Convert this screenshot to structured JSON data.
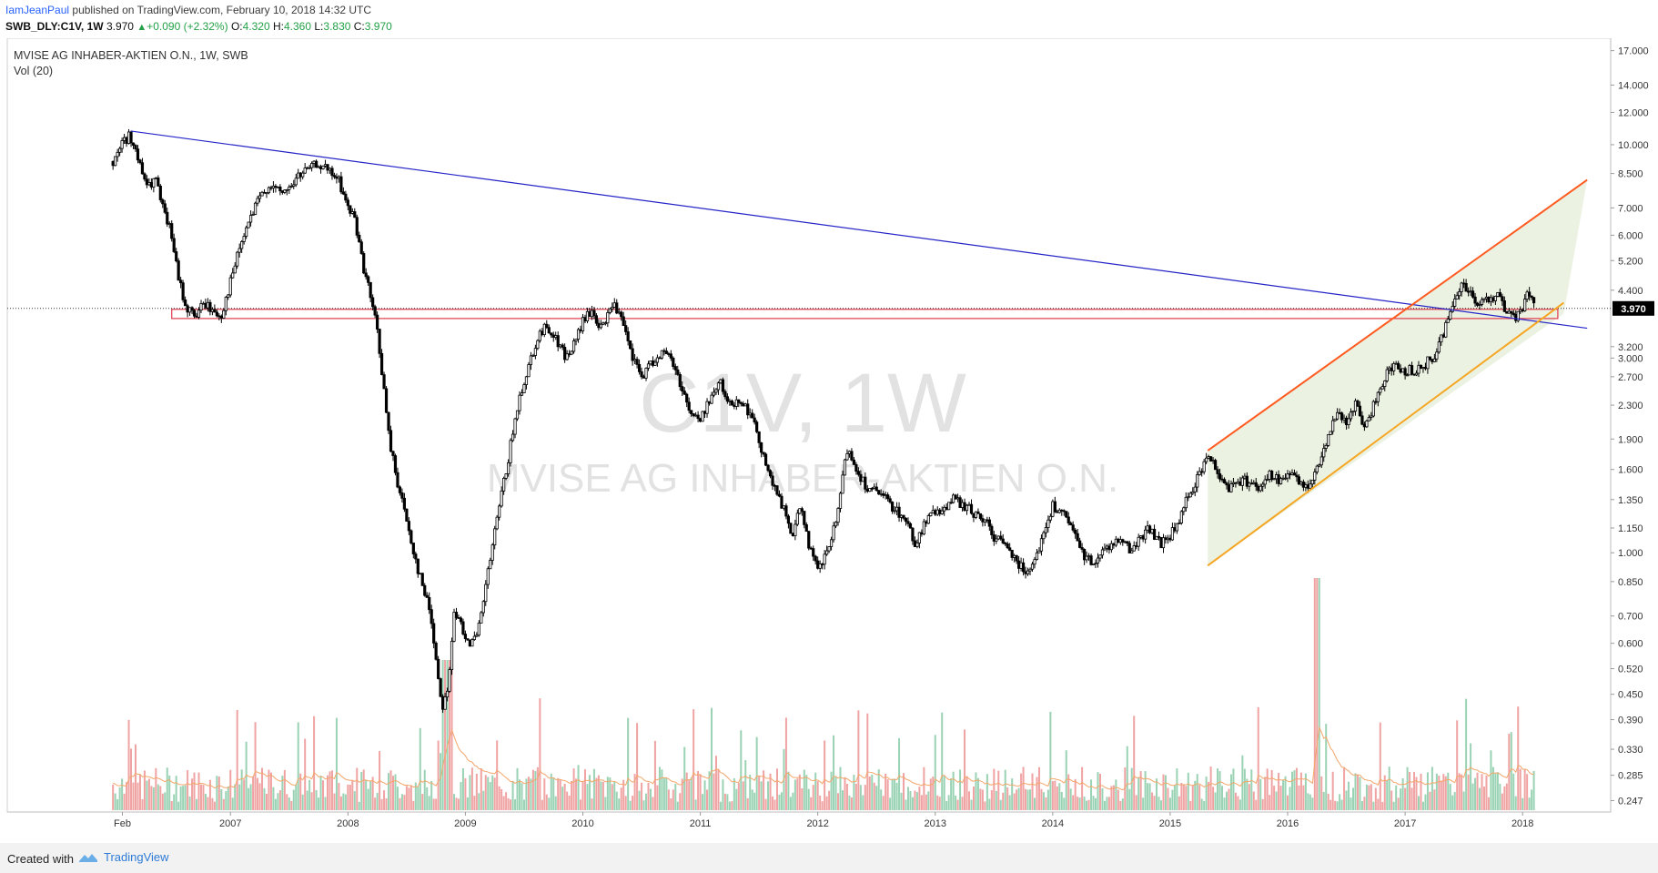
{
  "header": {
    "author": "IamJeanPaul",
    "published_text": "published on TradingView.com, February 10, 2018 14:32 UTC",
    "symbol": "SWB_DLY:C1V, 1W",
    "last": "3.970",
    "change": "+0.090 (+2.32%)",
    "o_label": "O:",
    "o_value": "4.320",
    "h_label": "H:",
    "h_value": "4.360",
    "l_label": "L:",
    "l_value": "3.830",
    "c_label": "C:",
    "c_value": "3.970"
  },
  "legend": {
    "title": "MVISE AG INHABER-AKTIEN O.N., 1W, SWB",
    "volume": "Vol (20)"
  },
  "watermark": {
    "line1": "C1V, 1W",
    "line2": "MVISE AG INHABER-AKTIEN O.N."
  },
  "footer": {
    "created_with": "Created with",
    "brand": "TradingView"
  },
  "colors": {
    "background": "#ffffff",
    "candle": "#000000",
    "trendline": "#2525c8",
    "channel_upper": "#ff5a1f",
    "channel_lower": "#f5a623",
    "channel_fill": "#e6edd8",
    "support_box": "#e03a4a",
    "vol_up": "#9ad2b4",
    "vol_down": "#f0a3a3",
    "vol_ma": "#f3a66a",
    "price_tag": "#000000"
  },
  "chart_data": {
    "type": "candlestick",
    "title": "MVISE AG INHABER-AKTIEN O.N., 1W, SWB",
    "scale": "log",
    "ylim": [
      0.22,
      17.5
    ],
    "price_ticks": [
      "17.000",
      "14.000",
      "12.000",
      "10.000",
      "8.500",
      "7.000",
      "6.000",
      "5.200",
      "4.400",
      "3.000",
      "3.200",
      "2.700",
      "2.300",
      "1.900",
      "1.600",
      "1.350",
      "1.150",
      "1.000",
      "0.850",
      "0.700",
      "0.600",
      "0.520",
      "0.450",
      "0.390",
      "0.330",
      "0.285",
      "0.247"
    ],
    "price_tick_values": [
      17.0,
      14.0,
      12.0,
      10.0,
      8.5,
      7.0,
      6.0,
      5.2,
      4.4,
      3.0,
      3.2,
      2.7,
      2.3,
      1.9,
      1.6,
      1.35,
      1.15,
      1.0,
      0.85,
      0.7,
      0.6,
      0.52,
      0.45,
      0.39,
      0.33,
      0.285,
      0.247
    ],
    "current_price_label": "3.970",
    "current_price": 3.97,
    "x_ticks": [
      "Feb",
      "2007",
      "2008",
      "2009",
      "2010",
      "2011",
      "2012",
      "2013",
      "2014",
      "2015",
      "2016",
      "2017",
      "2018"
    ],
    "x_tick_values": [
      2006.08,
      2007.0,
      2008.0,
      2009.0,
      2010.0,
      2011.0,
      2012.0,
      2013.0,
      2014.0,
      2015.0,
      2016.0,
      2017.0,
      2018.0
    ],
    "xlim": [
      2005.1,
      2018.75
    ],
    "price_path": [
      [
        2006.0,
        9.1
      ],
      [
        2006.08,
        10.2
      ],
      [
        2006.15,
        10.5
      ],
      [
        2006.22,
        9.0
      ],
      [
        2006.3,
        7.8
      ],
      [
        2006.36,
        8.3
      ],
      [
        2006.42,
        7.0
      ],
      [
        2006.5,
        6.0
      ],
      [
        2006.55,
        4.8
      ],
      [
        2006.62,
        4.0
      ],
      [
        2006.7,
        3.8
      ],
      [
        2006.78,
        4.1
      ],
      [
        2006.85,
        3.9
      ],
      [
        2006.92,
        3.8
      ],
      [
        2007.0,
        4.6
      ],
      [
        2007.08,
        5.6
      ],
      [
        2007.17,
        6.6
      ],
      [
        2007.25,
        7.4
      ],
      [
        2007.33,
        8.0
      ],
      [
        2007.42,
        7.6
      ],
      [
        2007.5,
        7.8
      ],
      [
        2007.58,
        8.4
      ],
      [
        2007.67,
        8.7
      ],
      [
        2007.75,
        9.0
      ],
      [
        2007.83,
        8.6
      ],
      [
        2007.92,
        8.2
      ],
      [
        2008.0,
        7.0
      ],
      [
        2008.06,
        6.6
      ],
      [
        2008.12,
        5.2
      ],
      [
        2008.18,
        4.4
      ],
      [
        2008.25,
        3.5
      ],
      [
        2008.3,
        2.6
      ],
      [
        2008.35,
        1.9
      ],
      [
        2008.42,
        1.5
      ],
      [
        2008.5,
        1.2
      ],
      [
        2008.58,
        0.95
      ],
      [
        2008.65,
        0.8
      ],
      [
        2008.7,
        0.72
      ],
      [
        2008.75,
        0.55
      ],
      [
        2008.8,
        0.42
      ],
      [
        2008.85,
        0.46
      ],
      [
        2008.9,
        0.7
      ],
      [
        2008.95,
        0.68
      ],
      [
        2009.0,
        0.63
      ],
      [
        2009.05,
        0.6
      ],
      [
        2009.1,
        0.62
      ],
      [
        2009.15,
        0.75
      ],
      [
        2009.22,
        1.0
      ],
      [
        2009.3,
        1.35
      ],
      [
        2009.38,
        1.8
      ],
      [
        2009.46,
        2.4
      ],
      [
        2009.54,
        2.9
      ],
      [
        2009.62,
        3.4
      ],
      [
        2009.7,
        3.6
      ],
      [
        2009.78,
        3.3
      ],
      [
        2009.86,
        3.0
      ],
      [
        2009.94,
        3.3
      ],
      [
        2010.0,
        3.7
      ],
      [
        2010.08,
        3.9
      ],
      [
        2010.16,
        3.5
      ],
      [
        2010.25,
        4.1
      ],
      [
        2010.33,
        3.7
      ],
      [
        2010.42,
        3.0
      ],
      [
        2010.5,
        2.7
      ],
      [
        2010.58,
        2.9
      ],
      [
        2010.66,
        3.1
      ],
      [
        2010.75,
        3.0
      ],
      [
        2010.83,
        2.6
      ],
      [
        2010.92,
        2.2
      ],
      [
        2011.0,
        2.1
      ],
      [
        2011.08,
        2.4
      ],
      [
        2011.17,
        2.6
      ],
      [
        2011.25,
        2.3
      ],
      [
        2011.33,
        2.4
      ],
      [
        2011.42,
        2.2
      ],
      [
        2011.5,
        1.9
      ],
      [
        2011.6,
        1.5
      ],
      [
        2011.7,
        1.3
      ],
      [
        2011.78,
        1.1
      ],
      [
        2011.86,
        1.3
      ],
      [
        2011.94,
        1.0
      ],
      [
        2012.0,
        0.9
      ],
      [
        2012.08,
        1.0
      ],
      [
        2012.16,
        1.2
      ],
      [
        2012.25,
        1.8
      ],
      [
        2012.33,
        1.6
      ],
      [
        2012.42,
        1.45
      ],
      [
        2012.5,
        1.4
      ],
      [
        2012.58,
        1.35
      ],
      [
        2012.66,
        1.28
      ],
      [
        2012.75,
        1.2
      ],
      [
        2012.83,
        1.05
      ],
      [
        2012.92,
        1.2
      ],
      [
        2013.0,
        1.25
      ],
      [
        2013.08,
        1.3
      ],
      [
        2013.16,
        1.35
      ],
      [
        2013.25,
        1.3
      ],
      [
        2013.33,
        1.25
      ],
      [
        2013.42,
        1.2
      ],
      [
        2013.5,
        1.1
      ],
      [
        2013.58,
        1.05
      ],
      [
        2013.66,
        1.0
      ],
      [
        2013.75,
        0.9
      ],
      [
        2013.83,
        0.95
      ],
      [
        2013.92,
        1.1
      ],
      [
        2014.0,
        1.3
      ],
      [
        2014.08,
        1.25
      ],
      [
        2014.16,
        1.15
      ],
      [
        2014.25,
        1.0
      ],
      [
        2014.33,
        0.95
      ],
      [
        2014.42,
        1.0
      ],
      [
        2014.5,
        1.05
      ],
      [
        2014.58,
        1.1
      ],
      [
        2014.66,
        1.0
      ],
      [
        2014.75,
        1.1
      ],
      [
        2014.83,
        1.15
      ],
      [
        2014.92,
        1.05
      ],
      [
        2015.0,
        1.1
      ],
      [
        2015.08,
        1.2
      ],
      [
        2015.16,
        1.4
      ],
      [
        2015.25,
        1.55
      ],
      [
        2015.33,
        1.75
      ],
      [
        2015.42,
        1.55
      ],
      [
        2015.5,
        1.45
      ],
      [
        2015.58,
        1.5
      ],
      [
        2015.66,
        1.5
      ],
      [
        2015.75,
        1.45
      ],
      [
        2015.83,
        1.55
      ],
      [
        2015.92,
        1.5
      ],
      [
        2016.0,
        1.55
      ],
      [
        2016.08,
        1.5
      ],
      [
        2016.16,
        1.45
      ],
      [
        2016.25,
        1.6
      ],
      [
        2016.33,
        1.9
      ],
      [
        2016.42,
        2.2
      ],
      [
        2016.5,
        2.1
      ],
      [
        2016.58,
        2.3
      ],
      [
        2016.66,
        2.0
      ],
      [
        2016.75,
        2.4
      ],
      [
        2016.83,
        2.7
      ],
      [
        2016.92,
        2.9
      ],
      [
        2017.0,
        2.8
      ],
      [
        2017.08,
        2.8
      ],
      [
        2017.16,
        2.9
      ],
      [
        2017.25,
        3.0
      ],
      [
        2017.33,
        3.5
      ],
      [
        2017.4,
        4.0
      ],
      [
        2017.48,
        4.6
      ],
      [
        2017.55,
        4.4
      ],
      [
        2017.62,
        4.0
      ],
      [
        2017.7,
        4.2
      ],
      [
        2017.78,
        4.3
      ],
      [
        2017.86,
        3.9
      ],
      [
        2017.94,
        3.7
      ],
      [
        2018.0,
        4.0
      ],
      [
        2018.06,
        4.4
      ],
      [
        2018.1,
        3.97
      ]
    ],
    "trendlines": [
      {
        "name": "descending resistance",
        "from": [
          2006.15,
          10.8
        ],
        "to": [
          2018.55,
          3.55
        ]
      },
      {
        "name": "channel upper",
        "from": [
          2015.32,
          1.78
        ],
        "to": [
          2018.55,
          8.2
        ]
      },
      {
        "name": "channel lower",
        "from": [
          2015.32,
          0.93
        ],
        "to": [
          2018.35,
          4.1
        ]
      }
    ],
    "support_zone": {
      "x": [
        2006.5,
        2018.3
      ],
      "y": [
        3.75,
        3.95
      ]
    },
    "volume_ymax": 100
  }
}
